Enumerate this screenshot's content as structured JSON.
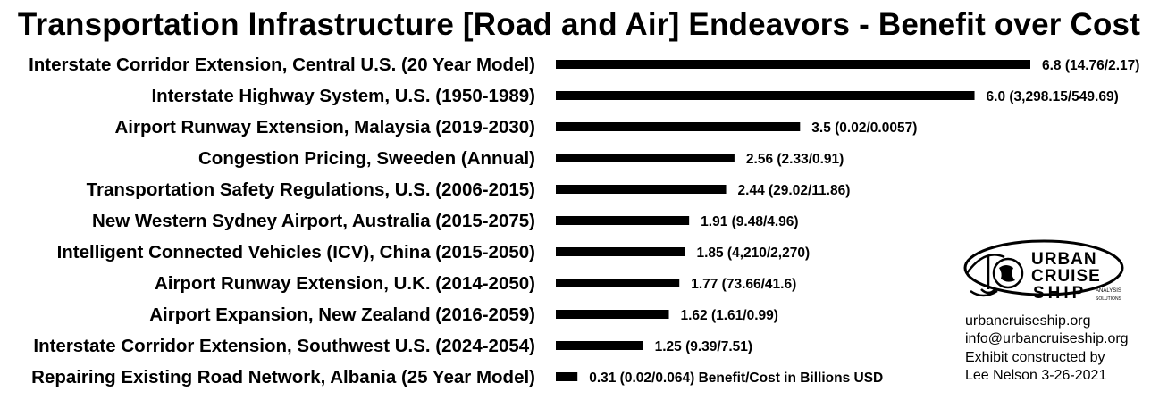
{
  "chart_data": {
    "type": "bar",
    "orientation": "horizontal",
    "title": "Transportation Infrastructure [Road and Air] Endeavors - Benefit over Cost",
    "categories": [
      "Interstate Corridor Extension, Central U.S. (20 Year Model)",
      "Interstate Highway System, U.S. (1950-1989)",
      "Airport Runway Extension, Malaysia (2019-2030)",
      "Congestion Pricing, Sweeden (Annual)",
      "Transportation Safety Regulations, U.S. (2006-2015)",
      "New Western Sydney Airport, Australia (2015-2075)",
      "Intelligent Connected Vehicles (ICV), China (2015-2050)",
      "Airport Runway Extension, U.K. (2014-2050)",
      "Airport Expansion, New Zealand (2016-2059)",
      "Interstate Corridor Extension, Southwest U.S. (2024-2054)",
      "Repairing Existing Road Network, Albania (25 Year Model)"
    ],
    "values": [
      6.8,
      6.0,
      3.5,
      2.56,
      2.44,
      1.91,
      1.85,
      1.77,
      1.62,
      1.25,
      0.31
    ],
    "data_labels": [
      "6.8 (14.76/2.17)",
      "6.0 (3,298.15/549.69)",
      "3.5 (0.02/0.0057)",
      "2.56 (2.33/0.91)",
      "2.44 (29.02/11.86)",
      "1.91 (9.48/4.96)",
      "1.85 (4,210/2,270)",
      "1.77 (73.66/41.6)",
      "1.62 (1.61/0.99)",
      "1.25 (9.39/7.51)",
      "0.31 (0.02/0.064) Benefit/Cost in Billions USD"
    ],
    "bar_color": "#000000",
    "xlim": [
      0,
      6.8
    ],
    "grid": false,
    "legend": "none"
  },
  "branding": {
    "logo_words": [
      "URBAN",
      "CRUISE",
      "SHIP"
    ],
    "logo_tagline": [
      "ANALYSIS",
      "SOLUTIONS"
    ],
    "website": "urbancruiseship.org",
    "email": "info@urbancruiseship.org",
    "credit_line1": "Exhibit constructed by",
    "credit_line2": "Lee Nelson 3-26-2021"
  }
}
